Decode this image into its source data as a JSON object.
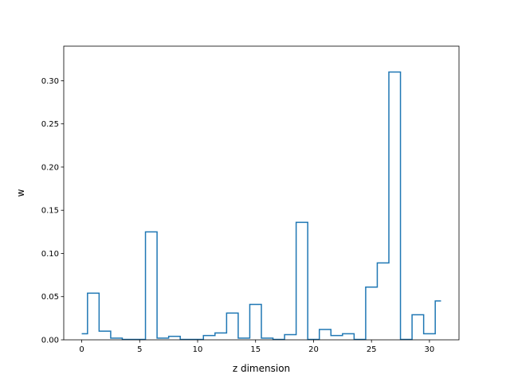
{
  "chart_data": {
    "type": "line",
    "step": "mid",
    "title": "",
    "xlabel": "z dimension",
    "ylabel": "w",
    "xlim": [
      -1.55,
      32.55
    ],
    "ylim": [
      0,
      0.34
    ],
    "xticks": [
      0,
      5,
      10,
      15,
      20,
      25,
      30
    ],
    "yticks": [
      0.0,
      0.05,
      0.1,
      0.15,
      0.2,
      0.25,
      0.3
    ],
    "grid": false,
    "legend": false,
    "series": [
      {
        "color": "#1f77b4",
        "x": [
          0,
          1,
          2,
          3,
          4,
          5,
          6,
          7,
          8,
          9,
          10,
          11,
          12,
          13,
          14,
          15,
          16,
          17,
          18,
          19,
          20,
          21,
          22,
          23,
          24,
          25,
          26,
          27,
          28,
          29,
          30,
          31
        ],
        "y": [
          0.007,
          0.054,
          0.01,
          0.002,
          0.0005,
          0.0005,
          0.125,
          0.002,
          0.004,
          0.0005,
          0.0005,
          0.005,
          0.008,
          0.031,
          0.002,
          0.041,
          0.002,
          0.0005,
          0.006,
          0.136,
          0.0005,
          0.012,
          0.005,
          0.007,
          0.0005,
          0.061,
          0.089,
          0.31,
          0.0005,
          0.029,
          0.007,
          0.045
        ]
      }
    ]
  }
}
